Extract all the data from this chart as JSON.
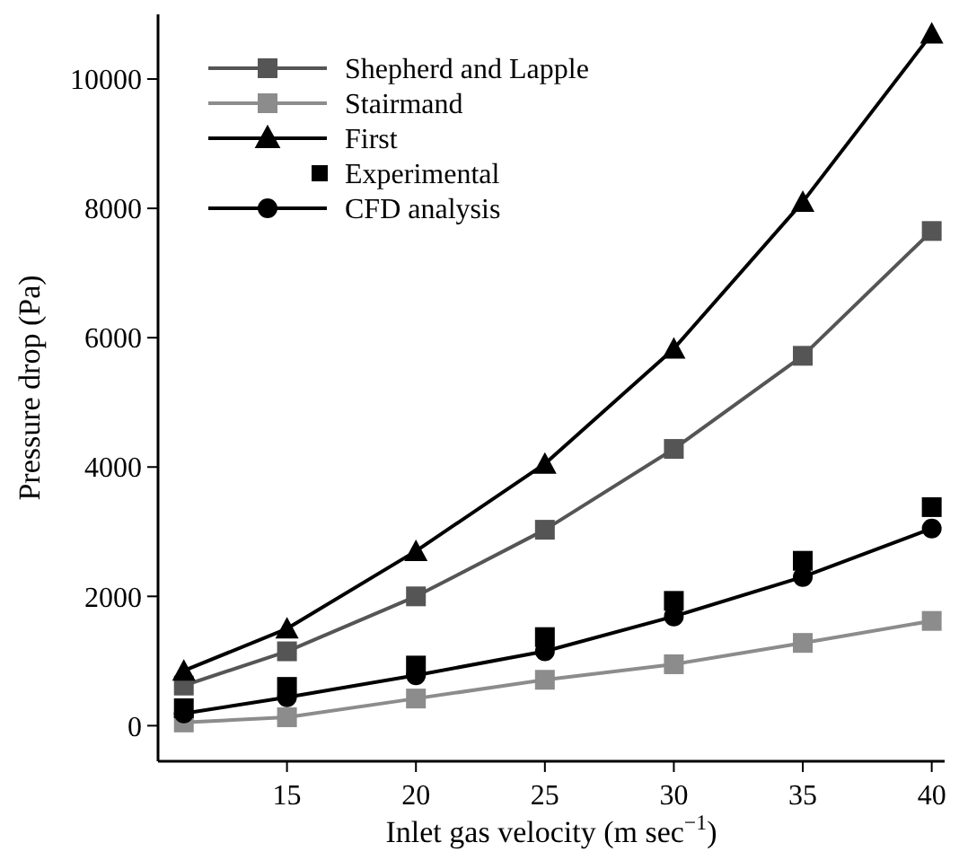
{
  "chart_data": {
    "type": "line",
    "xlabel": "Inlet gas velocity (m sec$^{−1}$)",
    "ylabel": "Pressure drop (Pa)",
    "x": [
      11,
      15,
      20,
      25,
      30,
      35,
      40
    ],
    "xlim": [
      10,
      40.5
    ],
    "xticks": [
      15,
      20,
      25,
      30,
      35,
      40
    ],
    "ylim": [
      -550,
      11000
    ],
    "yticks": [
      0,
      2000,
      4000,
      6000,
      8000,
      10000
    ],
    "legend": "top left",
    "grid": false,
    "series": [
      {
        "name": "Shepherd and Lapple",
        "color": "#555555",
        "marker": "square",
        "values": [
          620,
          1150,
          2000,
          3030,
          4280,
          5720,
          7650
        ]
      },
      {
        "name": "Stairmand",
        "color": "#8c8c8c",
        "marker": "square",
        "values": [
          50,
          130,
          420,
          710,
          950,
          1280,
          1620
        ]
      },
      {
        "name": "First",
        "color": "#000000",
        "marker": "triangle",
        "values": [
          850,
          1500,
          2700,
          4050,
          5830,
          8100,
          10700
        ]
      },
      {
        "name": "Experimental",
        "type": "scatter",
        "color": "#000000",
        "marker": "square",
        "values": [
          270,
          600,
          930,
          1370,
          1930,
          2550,
          3380
        ]
      },
      {
        "name": "CFD analysis",
        "color": "#000000",
        "marker": "circle",
        "values": [
          190,
          440,
          780,
          1150,
          1690,
          2300,
          3050
        ]
      }
    ]
  }
}
